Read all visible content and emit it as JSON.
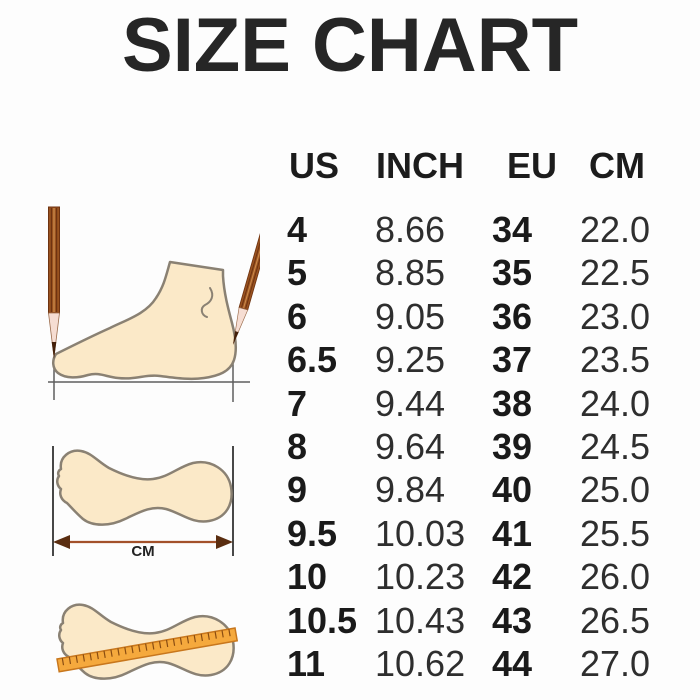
{
  "title": "SIZE CHART",
  "table": {
    "headers": [
      "US",
      "INCH",
      "EU",
      "CM"
    ],
    "rows": [
      [
        "4",
        "8.66",
        "34",
        "22.0"
      ],
      [
        "5",
        "8.85",
        "35",
        "22.5"
      ],
      [
        "6",
        "9.05",
        "36",
        "23.0"
      ],
      [
        "6.5",
        "9.25",
        "37",
        "23.5"
      ],
      [
        "7",
        "9.44",
        "38",
        "24.0"
      ],
      [
        "8",
        "9.64",
        "39",
        "24.5"
      ],
      [
        "9",
        "9.84",
        "40",
        "25.0"
      ],
      [
        "9.5",
        "10.03",
        "41",
        "25.5"
      ],
      [
        "10",
        "10.23",
        "42",
        "26.0"
      ],
      [
        "10.5",
        "10.43",
        "43",
        "26.5"
      ],
      [
        "11",
        "10.62",
        "44",
        "27.0"
      ]
    ]
  },
  "illustrations": {
    "cm_label": "CM",
    "icons": [
      "pencil-icon",
      "foot-side-icon",
      "footprint-icon",
      "ruler-icon",
      "measure-arrow-icon"
    ]
  },
  "chart_data": {
    "type": "table",
    "title": "SIZE CHART",
    "columns": [
      "US",
      "INCH",
      "EU",
      "CM"
    ],
    "rows": [
      [
        4,
        8.66,
        34,
        22.0
      ],
      [
        5,
        8.85,
        35,
        22.5
      ],
      [
        6,
        9.05,
        36,
        23.0
      ],
      [
        6.5,
        9.25,
        37,
        23.5
      ],
      [
        7,
        9.44,
        38,
        24.0
      ],
      [
        8,
        9.64,
        39,
        24.5
      ],
      [
        9,
        9.84,
        40,
        25.0
      ],
      [
        9.5,
        10.03,
        41,
        25.5
      ],
      [
        10,
        10.23,
        42,
        26.0
      ],
      [
        10.5,
        10.43,
        43,
        26.5
      ],
      [
        11,
        10.62,
        44,
        27.0
      ]
    ]
  },
  "colors": {
    "background": "#ffffff",
    "text": "#262626",
    "foot_fill": "#fbe9c8",
    "foot_outline": "#8a8173",
    "pencil_brown": "#99521f",
    "ruler_orange": "#f5a93d",
    "arrow_brown": "#a3512a"
  }
}
